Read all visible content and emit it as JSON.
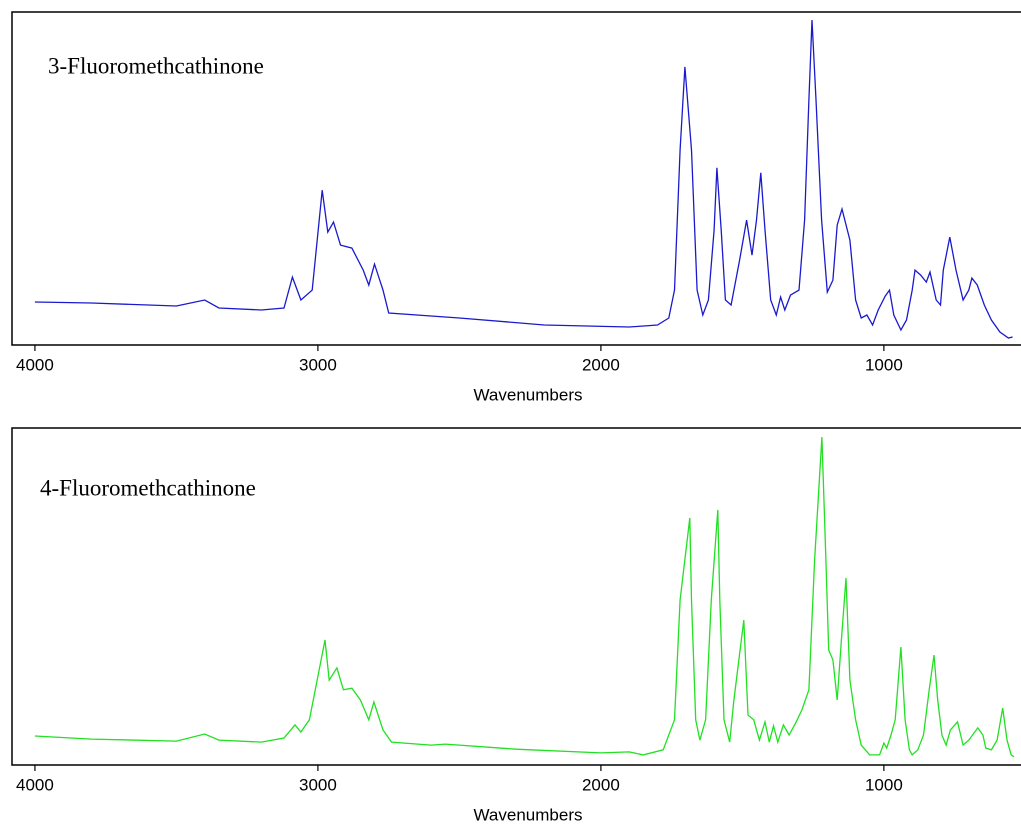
{
  "chart_data": [
    {
      "type": "line",
      "annotation": "3-Fluoromethcathinone",
      "xlabel": "Wavenumbers",
      "color": "#1a1acd",
      "xlim": [
        4081,
        519
      ],
      "xticks": [
        4000,
        3000,
        2000,
        1000
      ],
      "ylim": [
        0,
        100
      ],
      "x": [
        4000,
        3800,
        3500,
        3400,
        3350,
        3200,
        3120,
        3090,
        3060,
        3020,
        2985,
        2965,
        2945,
        2920,
        2880,
        2840,
        2820,
        2800,
        2770,
        2750,
        2500,
        2200,
        1900,
        1800,
        1760,
        1740,
        1720,
        1703,
        1680,
        1660,
        1640,
        1620,
        1600,
        1590,
        1575,
        1560,
        1540,
        1510,
        1485,
        1466,
        1450,
        1435,
        1420,
        1400,
        1380,
        1365,
        1350,
        1330,
        1300,
        1280,
        1265,
        1254,
        1240,
        1220,
        1200,
        1180,
        1165,
        1148,
        1120,
        1100,
        1080,
        1060,
        1040,
        1020,
        995,
        980,
        965,
        940,
        920,
        900,
        890,
        870,
        850,
        837,
        815,
        800,
        790,
        767,
        745,
        720,
        700,
        689,
        670,
        645,
        620,
        590,
        560,
        545
      ],
      "values": [
        12.9,
        12.6,
        11.7,
        13.5,
        11.1,
        10.5,
        11.1,
        20.4,
        13.5,
        16.5,
        46.5,
        33.9,
        36.9,
        30.0,
        29.1,
        22.5,
        18.0,
        24.3,
        16.5,
        9.6,
        8.1,
        6.0,
        5.4,
        6.0,
        8.1,
        16.5,
        58.6,
        83.5,
        58.6,
        16.5,
        9.0,
        13.5,
        34.5,
        53.2,
        34.5,
        13.5,
        12.0,
        25.5,
        37.5,
        27.0,
        37.5,
        51.7,
        34.5,
        13.5,
        9.0,
        14.4,
        10.5,
        15.0,
        16.5,
        37.5,
        73.6,
        97.6,
        73.6,
        37.5,
        15.9,
        19.5,
        36.0,
        40.8,
        31.5,
        13.5,
        8.1,
        9.0,
        6.0,
        10.5,
        14.7,
        16.5,
        9.0,
        4.5,
        7.5,
        16.5,
        22.5,
        21.0,
        18.9,
        21.9,
        13.5,
        12.0,
        22.5,
        32.4,
        22.5,
        13.5,
        16.5,
        20.1,
        18.0,
        12.0,
        7.5,
        3.9,
        2.1,
        2.4
      ]
    },
    {
      "type": "line",
      "annotation": "4-Fluoromethcathinone",
      "xlabel": "Wavenumbers",
      "color": "#22e022",
      "xlim": [
        4081,
        519
      ],
      "xticks": [
        4000,
        3000,
        2000,
        1000
      ],
      "ylim": [
        0,
        100
      ],
      "x": [
        4000,
        3800,
        3500,
        3400,
        3350,
        3200,
        3120,
        3081,
        3060,
        3030,
        2975,
        2960,
        2933,
        2910,
        2880,
        2850,
        2820,
        2802,
        2770,
        2740,
        2600,
        2550,
        2300,
        2000,
        1900,
        1850,
        1780,
        1740,
        1720,
        1686,
        1680,
        1665,
        1650,
        1630,
        1610,
        1587,
        1580,
        1565,
        1545,
        1530,
        1495,
        1480,
        1460,
        1440,
        1420,
        1405,
        1390,
        1375,
        1355,
        1335,
        1310,
        1290,
        1265,
        1245,
        1219,
        1205,
        1195,
        1180,
        1165,
        1150,
        1134,
        1120,
        1100,
        1080,
        1050,
        1015,
        1000,
        990,
        975,
        960,
        940,
        925,
        910,
        900,
        880,
        860,
        840,
        823,
        810,
        795,
        780,
        765,
        740,
        720,
        700,
        668,
        650,
        640,
        620,
        600,
        580,
        565,
        550,
        540
      ],
      "values": [
        8.6,
        7.7,
        7.1,
        9.2,
        7.4,
        6.8,
        8.0,
        11.9,
        9.8,
        13.4,
        37.1,
        25.2,
        28.8,
        22.3,
        22.8,
        19.3,
        13.4,
        18.7,
        10.4,
        6.8,
        5.9,
        6.2,
        4.7,
        3.6,
        3.9,
        3.0,
        4.5,
        13.4,
        49.0,
        73.3,
        49.0,
        13.4,
        7.4,
        13.4,
        49.0,
        75.7,
        49.0,
        13.4,
        6.8,
        19.3,
        43.0,
        14.8,
        13.4,
        7.4,
        12.8,
        6.8,
        11.6,
        6.8,
        11.9,
        8.9,
        12.8,
        16.3,
        22.3,
        60.8,
        97.3,
        60.8,
        34.1,
        31.2,
        19.3,
        37.1,
        55.5,
        25.2,
        13.4,
        5.9,
        3.0,
        3.0,
        6.5,
        5.0,
        8.9,
        13.4,
        35.0,
        13.4,
        4.5,
        3.0,
        4.5,
        8.9,
        22.3,
        32.6,
        19.3,
        8.9,
        5.9,
        10.4,
        12.8,
        5.9,
        7.4,
        11.0,
        8.9,
        5.0,
        4.5,
        7.4,
        16.9,
        7.4,
        3.0,
        2.4
      ]
    }
  ]
}
